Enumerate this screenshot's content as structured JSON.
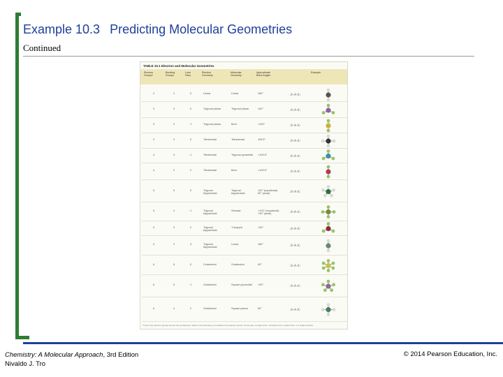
{
  "header": {
    "example_number": "Example 10.3",
    "title": "Predicting Molecular Geometries",
    "subtitle": "Continued"
  },
  "table": {
    "caption": "TABLE 10.1 Electron and Molecular Geometries",
    "columns": [
      "Electron Groups*",
      "Bonding Groups",
      "Lone Pairs",
      "Electron Geometry",
      "Molecular Geometry",
      "Approximate Bond Angles",
      "Example"
    ],
    "rows": [
      [
        "2",
        "2",
        "0",
        "Linear",
        "Linear",
        "180°"
      ],
      [
        "3",
        "3",
        "0",
        "Trigonal planar",
        "Trigonal planar",
        "120°"
      ],
      [
        "3",
        "2",
        "1",
        "Trigonal planar",
        "Bent",
        "<120°"
      ],
      [
        "4",
        "4",
        "0",
        "Tetrahedral",
        "Tetrahedral",
        "109.5°"
      ],
      [
        "4",
        "3",
        "1",
        "Tetrahedral",
        "Trigonal pyramidal",
        "<109.5°"
      ],
      [
        "4",
        "2",
        "2",
        "Tetrahedral",
        "Bent",
        "<109.5°"
      ],
      [
        "5",
        "5",
        "0",
        "Trigonal bipyramidal",
        "Trigonal bipyramidal",
        "120° (equatorial) 90° (axial)"
      ],
      [
        "5",
        "4",
        "1",
        "Trigonal bipyramidal",
        "Seesaw",
        "<120° (equatorial) <90° (axial)"
      ],
      [
        "5",
        "3",
        "2",
        "Trigonal bipyramidal",
        "T-shaped",
        "<90°"
      ],
      [
        "5",
        "2",
        "3",
        "Trigonal bipyramidal",
        "Linear",
        "180°"
      ],
      [
        "6",
        "6",
        "0",
        "Octahedral",
        "Octahedral",
        "90°"
      ],
      [
        "6",
        "5",
        "1",
        "Octahedral",
        "Square pyramidal",
        "<90°"
      ],
      [
        "6",
        "4",
        "2",
        "Octahedral",
        "Square planar",
        "90°"
      ]
    ],
    "footnote": "*Count only electron groups around the central atom. Each of the following is considered one electron group: a lone pair, a single bond, a double bond, a triple bond, or a single electron."
  },
  "footer": {
    "book_title": "Chemistry: A Molecular Approach",
    "edition": ", 3rd Edition",
    "author": "Nivaldo J. Tro",
    "copyright": "© 2014 Pearson Education, Inc."
  },
  "colors": {
    "title_blue": "#1f3f99",
    "bracket_green": "#2e7d32",
    "table_header": "#efe6b8"
  }
}
